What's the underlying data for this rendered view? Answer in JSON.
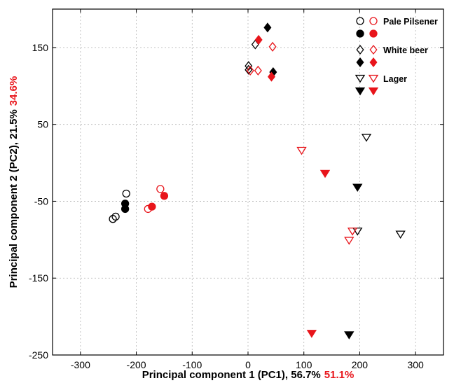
{
  "chart_data": {
    "type": "scatter",
    "title": "",
    "xlabel": "Principal component 1 (PC1), 56.7%",
    "xlabel_extra": "51.1%",
    "ylabel": "Principal component 2 (PC2), 21.5%",
    "ylabel_extra": "34.6%",
    "xlim": [
      -350,
      350
    ],
    "ylim": [
      -250,
      200
    ],
    "xticks": [
      -300,
      -200,
      -100,
      0,
      100,
      200,
      300
    ],
    "yticks": [
      -250,
      -150,
      -50,
      50,
      150
    ],
    "grid": true,
    "legend_position": "top-right",
    "colors": {
      "black": "#000000",
      "red": "#e8151b",
      "grid": "#b5b5b5"
    },
    "legend": [
      {
        "name": "Pale Pilsener",
        "marker": "circle"
      },
      {
        "name": "White beer",
        "marker": "diamond"
      },
      {
        "name": "Lager",
        "marker": "triangle-down"
      }
    ],
    "series": [
      {
        "name": "Pale Pilsener",
        "marker": "circle",
        "filled": false,
        "color": "#000000",
        "points": [
          [
            -218,
            -40
          ],
          [
            -237,
            -70
          ],
          [
            -242,
            -73
          ]
        ]
      },
      {
        "name": "Pale Pilsener",
        "marker": "circle",
        "filled": false,
        "color": "#e8151b",
        "points": [
          [
            -157,
            -34
          ],
          [
            -179,
            -60
          ]
        ]
      },
      {
        "name": "Pale Pilsener",
        "marker": "circle",
        "filled": true,
        "color": "#000000",
        "points": [
          [
            -220,
            -53
          ],
          [
            -220,
            -60
          ]
        ]
      },
      {
        "name": "Pale Pilsener",
        "marker": "circle",
        "filled": true,
        "color": "#e8151b",
        "points": [
          [
            -172,
            -57
          ],
          [
            -150,
            -43
          ]
        ]
      },
      {
        "name": "White beer",
        "marker": "diamond",
        "filled": false,
        "color": "#000000",
        "points": [
          [
            13,
            154
          ],
          [
            1,
            126
          ],
          [
            1,
            121
          ]
        ]
      },
      {
        "name": "White beer",
        "marker": "diamond",
        "filled": false,
        "color": "#e8151b",
        "points": [
          [
            44,
            151
          ],
          [
            18,
            120
          ],
          [
            4,
            120
          ]
        ]
      },
      {
        "name": "White beer",
        "marker": "diamond",
        "filled": true,
        "color": "#000000",
        "points": [
          [
            35,
            176
          ],
          [
            45,
            118
          ]
        ]
      },
      {
        "name": "White beer",
        "marker": "diamond",
        "filled": true,
        "color": "#e8151b",
        "points": [
          [
            19,
            160
          ],
          [
            42,
            112
          ]
        ]
      },
      {
        "name": "Lager",
        "marker": "triangle-down",
        "filled": false,
        "color": "#000000",
        "points": [
          [
            212,
            33
          ],
          [
            196,
            -89
          ],
          [
            273,
            -93
          ]
        ]
      },
      {
        "name": "Lager",
        "marker": "triangle-down",
        "filled": false,
        "color": "#e8151b",
        "points": [
          [
            96,
            16
          ],
          [
            187,
            -89
          ],
          [
            181,
            -101
          ]
        ]
      },
      {
        "name": "Lager",
        "marker": "triangle-down",
        "filled": true,
        "color": "#000000",
        "points": [
          [
            196,
            -32
          ],
          [
            181,
            -224
          ]
        ]
      },
      {
        "name": "Lager",
        "marker": "triangle-down",
        "filled": true,
        "color": "#e8151b",
        "points": [
          [
            138,
            -14
          ],
          [
            114,
            -222
          ]
        ]
      }
    ]
  }
}
